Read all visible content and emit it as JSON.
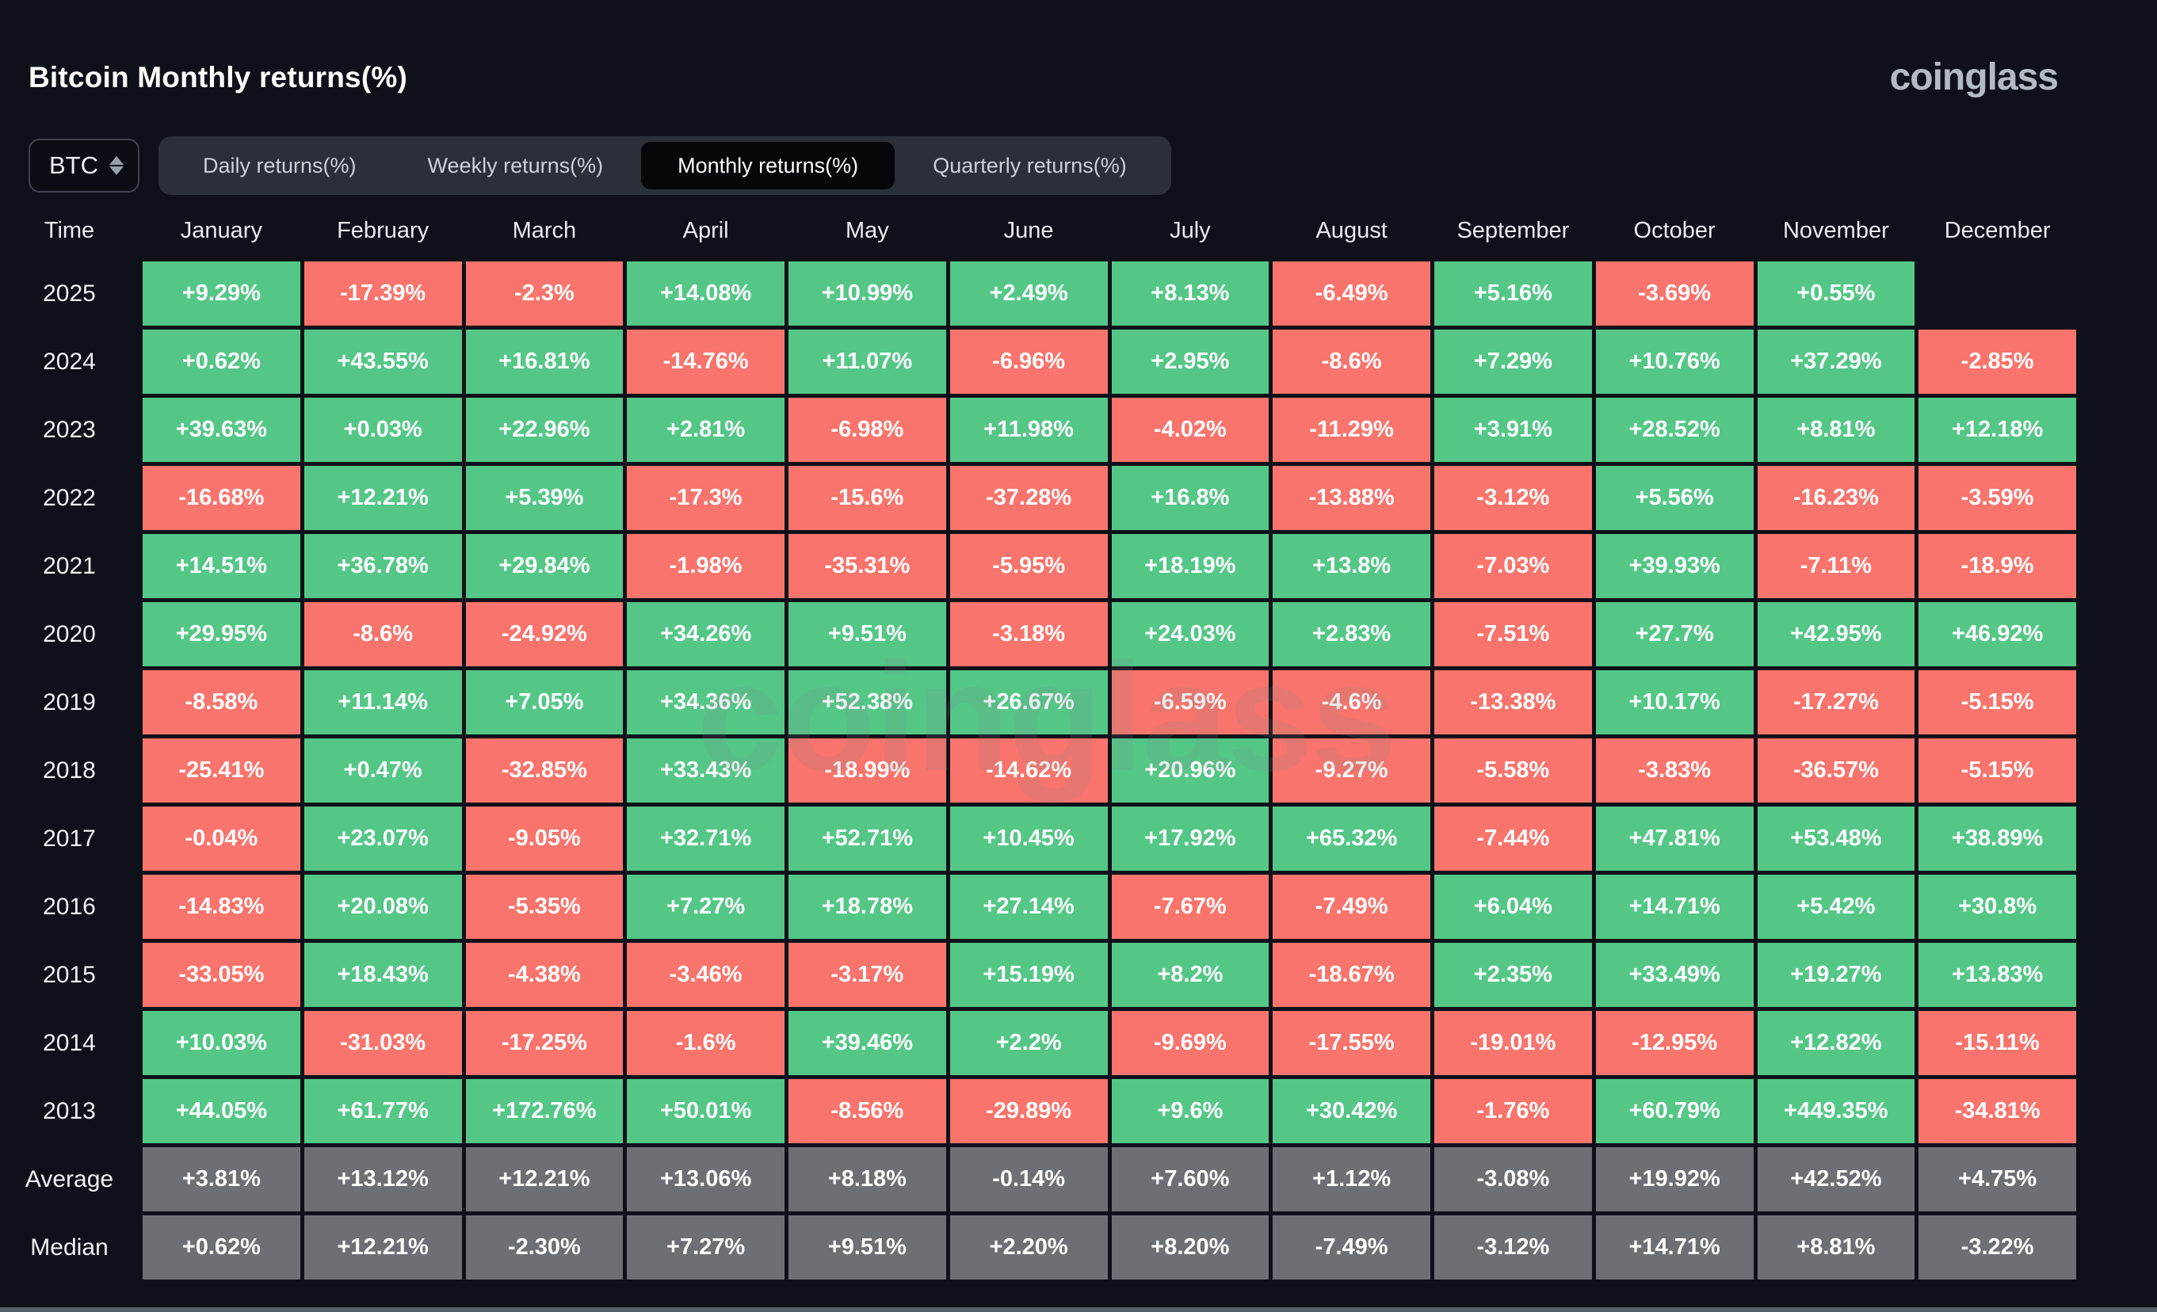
{
  "page": {
    "title": "Bitcoin Monthly returns(%)",
    "logo": "coinglass",
    "watermark": "coinglass",
    "symbol_select": {
      "value": "BTC"
    },
    "tabs": [
      {
        "label": "Daily returns(%)",
        "active": false
      },
      {
        "label": "Weekly returns(%)",
        "active": false
      },
      {
        "label": "Monthly returns(%)",
        "active": true
      },
      {
        "label": "Quarterly returns(%)",
        "active": false
      }
    ]
  },
  "colors": {
    "positive": "#54c787",
    "negative": "#f9746c",
    "summary": "#6c6f74",
    "background": "#0e1119"
  },
  "chart_data": {
    "type": "heatmap",
    "title": "Bitcoin Monthly returns(%)",
    "columns": [
      "Time",
      "January",
      "February",
      "March",
      "April",
      "May",
      "June",
      "July",
      "August",
      "September",
      "October",
      "November",
      "December"
    ],
    "rows": [
      {
        "label": "2025",
        "kind": "year",
        "values": [
          "+9.29%",
          "-17.39%",
          "-2.3%",
          "+14.08%",
          "+10.99%",
          "+2.49%",
          "+8.13%",
          "-6.49%",
          "+5.16%",
          "-3.69%",
          "+0.55%",
          ""
        ]
      },
      {
        "label": "2024",
        "kind": "year",
        "values": [
          "+0.62%",
          "+43.55%",
          "+16.81%",
          "-14.76%",
          "+11.07%",
          "-6.96%",
          "+2.95%",
          "-8.6%",
          "+7.29%",
          "+10.76%",
          "+37.29%",
          "-2.85%"
        ]
      },
      {
        "label": "2023",
        "kind": "year",
        "values": [
          "+39.63%",
          "+0.03%",
          "+22.96%",
          "+2.81%",
          "-6.98%",
          "+11.98%",
          "-4.02%",
          "-11.29%",
          "+3.91%",
          "+28.52%",
          "+8.81%",
          "+12.18%"
        ]
      },
      {
        "label": "2022",
        "kind": "year",
        "values": [
          "-16.68%",
          "+12.21%",
          "+5.39%",
          "-17.3%",
          "-15.6%",
          "-37.28%",
          "+16.8%",
          "-13.88%",
          "-3.12%",
          "+5.56%",
          "-16.23%",
          "-3.59%"
        ]
      },
      {
        "label": "2021",
        "kind": "year",
        "values": [
          "+14.51%",
          "+36.78%",
          "+29.84%",
          "-1.98%",
          "-35.31%",
          "-5.95%",
          "+18.19%",
          "+13.8%",
          "-7.03%",
          "+39.93%",
          "-7.11%",
          "-18.9%"
        ]
      },
      {
        "label": "2020",
        "kind": "year",
        "values": [
          "+29.95%",
          "-8.6%",
          "-24.92%",
          "+34.26%",
          "+9.51%",
          "-3.18%",
          "+24.03%",
          "+2.83%",
          "-7.51%",
          "+27.7%",
          "+42.95%",
          "+46.92%"
        ]
      },
      {
        "label": "2019",
        "kind": "year",
        "values": [
          "-8.58%",
          "+11.14%",
          "+7.05%",
          "+34.36%",
          "+52.38%",
          "+26.67%",
          "-6.59%",
          "-4.6%",
          "-13.38%",
          "+10.17%",
          "-17.27%",
          "-5.15%"
        ]
      },
      {
        "label": "2018",
        "kind": "year",
        "values": [
          "-25.41%",
          "+0.47%",
          "-32.85%",
          "+33.43%",
          "-18.99%",
          "-14.62%",
          "+20.96%",
          "-9.27%",
          "-5.58%",
          "-3.83%",
          "-36.57%",
          "-5.15%"
        ]
      },
      {
        "label": "2017",
        "kind": "year",
        "values": [
          "-0.04%",
          "+23.07%",
          "-9.05%",
          "+32.71%",
          "+52.71%",
          "+10.45%",
          "+17.92%",
          "+65.32%",
          "-7.44%",
          "+47.81%",
          "+53.48%",
          "+38.89%"
        ]
      },
      {
        "label": "2016",
        "kind": "year",
        "values": [
          "-14.83%",
          "+20.08%",
          "-5.35%",
          "+7.27%",
          "+18.78%",
          "+27.14%",
          "-7.67%",
          "-7.49%",
          "+6.04%",
          "+14.71%",
          "+5.42%",
          "+30.8%"
        ]
      },
      {
        "label": "2015",
        "kind": "year",
        "values": [
          "-33.05%",
          "+18.43%",
          "-4.38%",
          "-3.46%",
          "-3.17%",
          "+15.19%",
          "+8.2%",
          "-18.67%",
          "+2.35%",
          "+33.49%",
          "+19.27%",
          "+13.83%"
        ]
      },
      {
        "label": "2014",
        "kind": "year",
        "values": [
          "+10.03%",
          "-31.03%",
          "-17.25%",
          "-1.6%",
          "+39.46%",
          "+2.2%",
          "-9.69%",
          "-17.55%",
          "-19.01%",
          "-12.95%",
          "+12.82%",
          "-15.11%"
        ]
      },
      {
        "label": "2013",
        "kind": "year",
        "values": [
          "+44.05%",
          "+61.77%",
          "+172.76%",
          "+50.01%",
          "-8.56%",
          "-29.89%",
          "+9.6%",
          "+30.42%",
          "-1.76%",
          "+60.79%",
          "+449.35%",
          "-34.81%"
        ]
      },
      {
        "label": "Average",
        "kind": "summary",
        "values": [
          "+3.81%",
          "+13.12%",
          "+12.21%",
          "+13.06%",
          "+8.18%",
          "-0.14%",
          "+7.60%",
          "+1.12%",
          "-3.08%",
          "+19.92%",
          "+42.52%",
          "+4.75%"
        ]
      },
      {
        "label": "Median",
        "kind": "summary",
        "values": [
          "+0.62%",
          "+12.21%",
          "-2.30%",
          "+7.27%",
          "+9.51%",
          "+2.20%",
          "+8.20%",
          "-7.49%",
          "-3.12%",
          "+14.71%",
          "+8.81%",
          "-3.22%"
        ]
      }
    ]
  }
}
